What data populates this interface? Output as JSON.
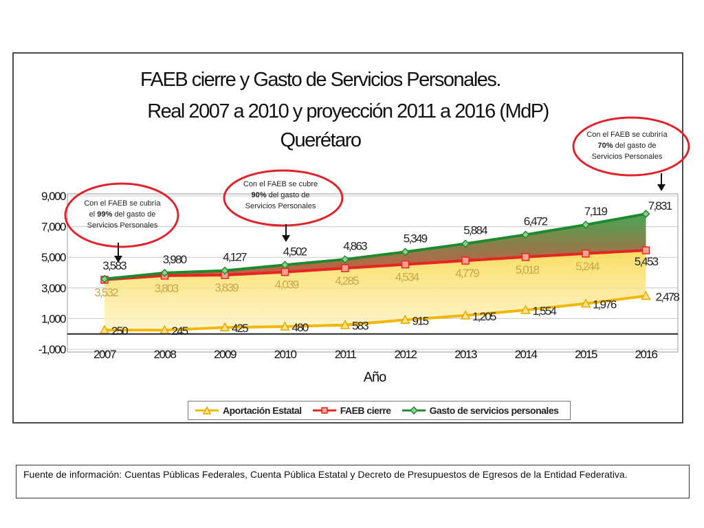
{
  "title": {
    "line1": "FAEB cierre y Gasto de Servicios Personales.",
    "line2": "Real  2007 a 2010 y proyección 2011 a 2016 (MdP)",
    "line3": "Querétaro"
  },
  "annotations": [
    {
      "l1": "Con el FAEB se cubría",
      "l2_pre": "el ",
      "pct": "99%",
      "l2_post": " del gasto de",
      "l3": "Servicios Personales"
    },
    {
      "l1": "Con el FAEB se cubre",
      "l2_pre": "",
      "pct": "90%",
      "l2_post": " del gasto de",
      "l3": "Servicios Personales"
    },
    {
      "l1": "Con el FAEB se cubriría",
      "l2_pre": "",
      "pct": "70%",
      "l2_post": " del gasto de",
      "l3": "Servicios Personales"
    }
  ],
  "chart_data": {
    "type": "line",
    "xlabel": "Año",
    "ylabel": "",
    "ylim": [
      -1000,
      9000
    ],
    "yticks": [
      "-1,000",
      "1,000",
      "3,000",
      "5,000",
      "7,000",
      "9,000"
    ],
    "ytick_values": [
      -1000,
      1000,
      3000,
      5000,
      7000,
      9000
    ],
    "categories": [
      "2007",
      "2008",
      "2009",
      "2010",
      "2011",
      "2012",
      "2013",
      "2014",
      "2015",
      "2016"
    ],
    "series": [
      {
        "name": "Aportación Estatal",
        "color": "#f2b705",
        "marker": "triangle",
        "values": [
          250,
          245,
          425,
          480,
          583,
          915,
          1205,
          1554,
          1976,
          2478
        ],
        "labels": [
          "250",
          "245",
          "425",
          "480",
          "583",
          "915",
          "1,205",
          "1,554",
          "1,976",
          "2,478"
        ]
      },
      {
        "name": "FAEB cierre",
        "color": "#e52521",
        "marker": "square",
        "values": [
          3532,
          3803,
          3839,
          4039,
          4285,
          4534,
          4779,
          5018,
          5244,
          5453
        ],
        "labels": [
          "3,532",
          "3,803",
          "3,839",
          "4,039",
          "4,285",
          "4,534",
          "4,779",
          "5,018",
          "5,244",
          "5,453"
        ]
      },
      {
        "name": "Gasto de servicios personales",
        "color": "#1e8a2e",
        "marker": "diamond",
        "values": [
          3583,
          3980,
          4127,
          4502,
          4863,
          5349,
          5884,
          6472,
          7119,
          7831
        ],
        "labels": [
          "3,583",
          "3,980",
          "4,127",
          "4,502",
          "4,863",
          "5,349",
          "5,884",
          "6,472",
          "7,119",
          "7,831"
        ]
      }
    ],
    "grid": true,
    "legend_position": "bottom"
  },
  "source_text": "Fuente de información: Cuentas Públicas Federales, Cuenta Pública Estatal y Decreto de Presupuestos de Egresos de la Entidad Federativa."
}
